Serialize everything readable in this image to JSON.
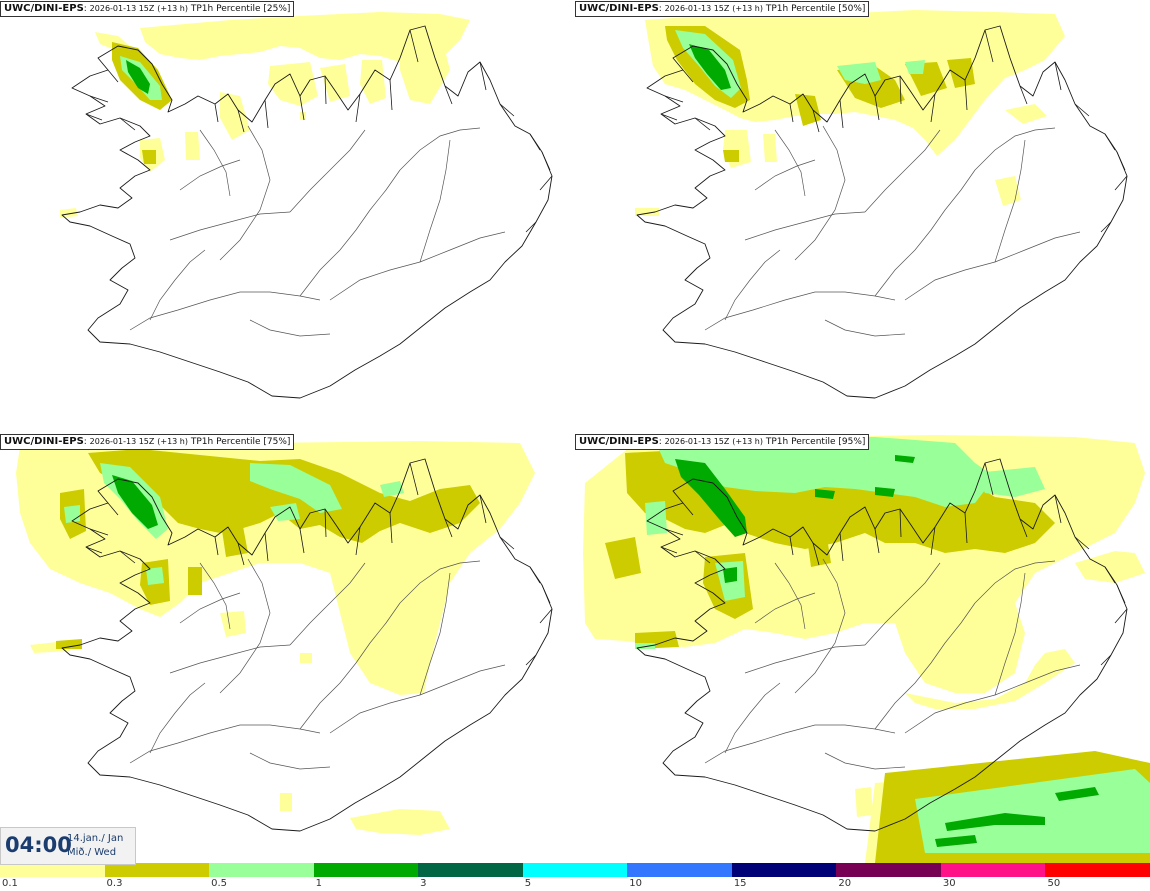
{
  "panels": [
    {
      "model": "UWC/DINI-EPS",
      "datetime": "2026-01-13 15Z",
      "lead": "(+13 h)",
      "field": "TP1h Percentile [25%]",
      "percentile": 25
    },
    {
      "model": "UWC/DINI-EPS",
      "datetime": "2026-01-13 15Z",
      "lead": "(+13 h)",
      "field": "TP1h Percentile [50%]",
      "percentile": 50
    },
    {
      "model": "UWC/DINI-EPS",
      "datetime": "2026-01-13 15Z",
      "lead": "(+13 h)",
      "field": "TP1h Percentile [75%]",
      "percentile": 75
    },
    {
      "model": "UWC/DINI-EPS",
      "datetime": "2026-01-13 15Z",
      "lead": "(+13 h)",
      "field": "TP1h Percentile [95%]",
      "percentile": 95
    }
  ],
  "valid": {
    "time": "04:00",
    "date": "14.jan./ Jan",
    "day": "Mið./ Wed"
  },
  "legend": {
    "colors": [
      "#ffff99",
      "#cccc00",
      "#99ff99",
      "#00aa00",
      "#006644",
      "#00ffff",
      "#3377ff",
      "#000077",
      "#770055",
      "#ff1188",
      "#ff0000"
    ],
    "ticks": [
      "0.1",
      "0.3",
      "0.5",
      "1",
      "3",
      "5",
      "10",
      "15",
      "20",
      "30",
      "50"
    ]
  }
}
